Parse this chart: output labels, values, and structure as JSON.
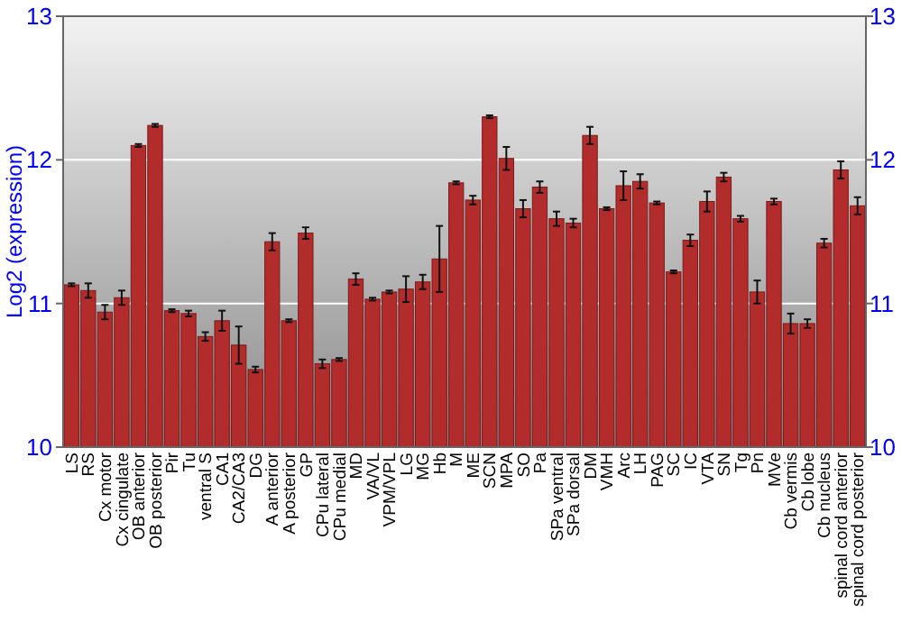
{
  "chart_data": {
    "type": "bar",
    "ylabel": "Log2 (expression)",
    "categories": [
      "LS",
      "RS",
      "Cx motor",
      "Cx cingulate",
      "OB anterior",
      "OB posterior",
      "Pir",
      "Tu",
      "ventral S",
      "CA1",
      "CA2/CA3",
      "DG",
      "A anterior",
      "A posterior",
      "GP",
      "CPu lateral",
      "CPu medial",
      "MD",
      "VA/VL",
      "VPM/VPL",
      "LG",
      "MG",
      "Hb",
      "M",
      "ME",
      "SCN",
      "MPA",
      "SO",
      "Pa",
      "SPa ventral",
      "SPa dorsal",
      "DM",
      "VMH",
      "Arc",
      "LH",
      "PAG",
      "SC",
      "IC",
      "VTA",
      "SN",
      "Tg",
      "Pn",
      "MVe",
      "Cb vermis",
      "Cb lobe",
      "Cb nucleus",
      "spinal cord anterior",
      "spinal cord posterior"
    ],
    "values": [
      11.13,
      11.09,
      10.94,
      11.04,
      12.1,
      12.24,
      10.95,
      10.93,
      10.77,
      10.88,
      10.71,
      10.54,
      11.43,
      10.88,
      11.49,
      10.58,
      10.61,
      11.17,
      11.03,
      11.08,
      11.1,
      11.15,
      11.31,
      11.84,
      11.72,
      12.3,
      12.01,
      11.66,
      11.81,
      11.59,
      11.56,
      12.17,
      11.66,
      11.82,
      11.85,
      11.7,
      11.22,
      11.44,
      11.71,
      11.88,
      11.59,
      11.08,
      11.71,
      10.86,
      10.86,
      11.42,
      11.93,
      11.68
    ],
    "errors": [
      0.01,
      0.05,
      0.05,
      0.05,
      0.01,
      0.01,
      0.01,
      0.02,
      0.03,
      0.07,
      0.13,
      0.02,
      0.06,
      0.01,
      0.04,
      0.03,
      0.01,
      0.04,
      0.01,
      0.01,
      0.09,
      0.05,
      0.23,
      0.01,
      0.03,
      0.01,
      0.08,
      0.06,
      0.04,
      0.05,
      0.03,
      0.06,
      0.01,
      0.1,
      0.05,
      0.01,
      0.01,
      0.04,
      0.07,
      0.03,
      0.02,
      0.08,
      0.02,
      0.07,
      0.03,
      0.03,
      0.06,
      0.06
    ],
    "color": "#b22c2c",
    "ylim": [
      10,
      13
    ],
    "yticks": [
      10,
      11,
      12,
      13
    ],
    "y2lim": [
      10,
      13
    ],
    "y2ticks": [
      10,
      11,
      12,
      13
    ],
    "grid": "y"
  }
}
